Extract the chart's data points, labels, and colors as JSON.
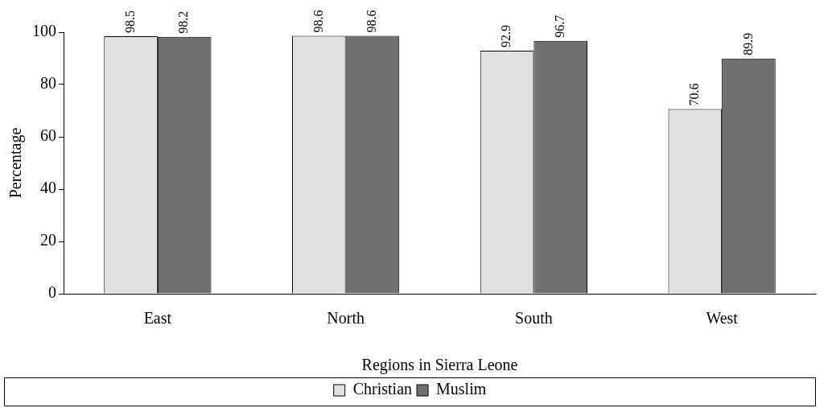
{
  "chart_data": {
    "type": "bar",
    "xlabel": "Regions in Sierra Leone",
    "ylabel": "Percentage",
    "categories": [
      "East",
      "North",
      "South",
      "West"
    ],
    "series": [
      {
        "name": "Christian",
        "color": "#e0e0e0",
        "values": [
          98.5,
          98.6,
          92.9,
          70.6
        ]
      },
      {
        "name": "Muslim",
        "color": "#707070",
        "values": [
          98.2,
          98.6,
          96.7,
          89.9
        ]
      }
    ],
    "ylim": [
      0,
      100
    ],
    "yticks": [
      0,
      20,
      40,
      60,
      80,
      100
    ],
    "grid": false,
    "legend": "bottom",
    "data_labels": true
  }
}
